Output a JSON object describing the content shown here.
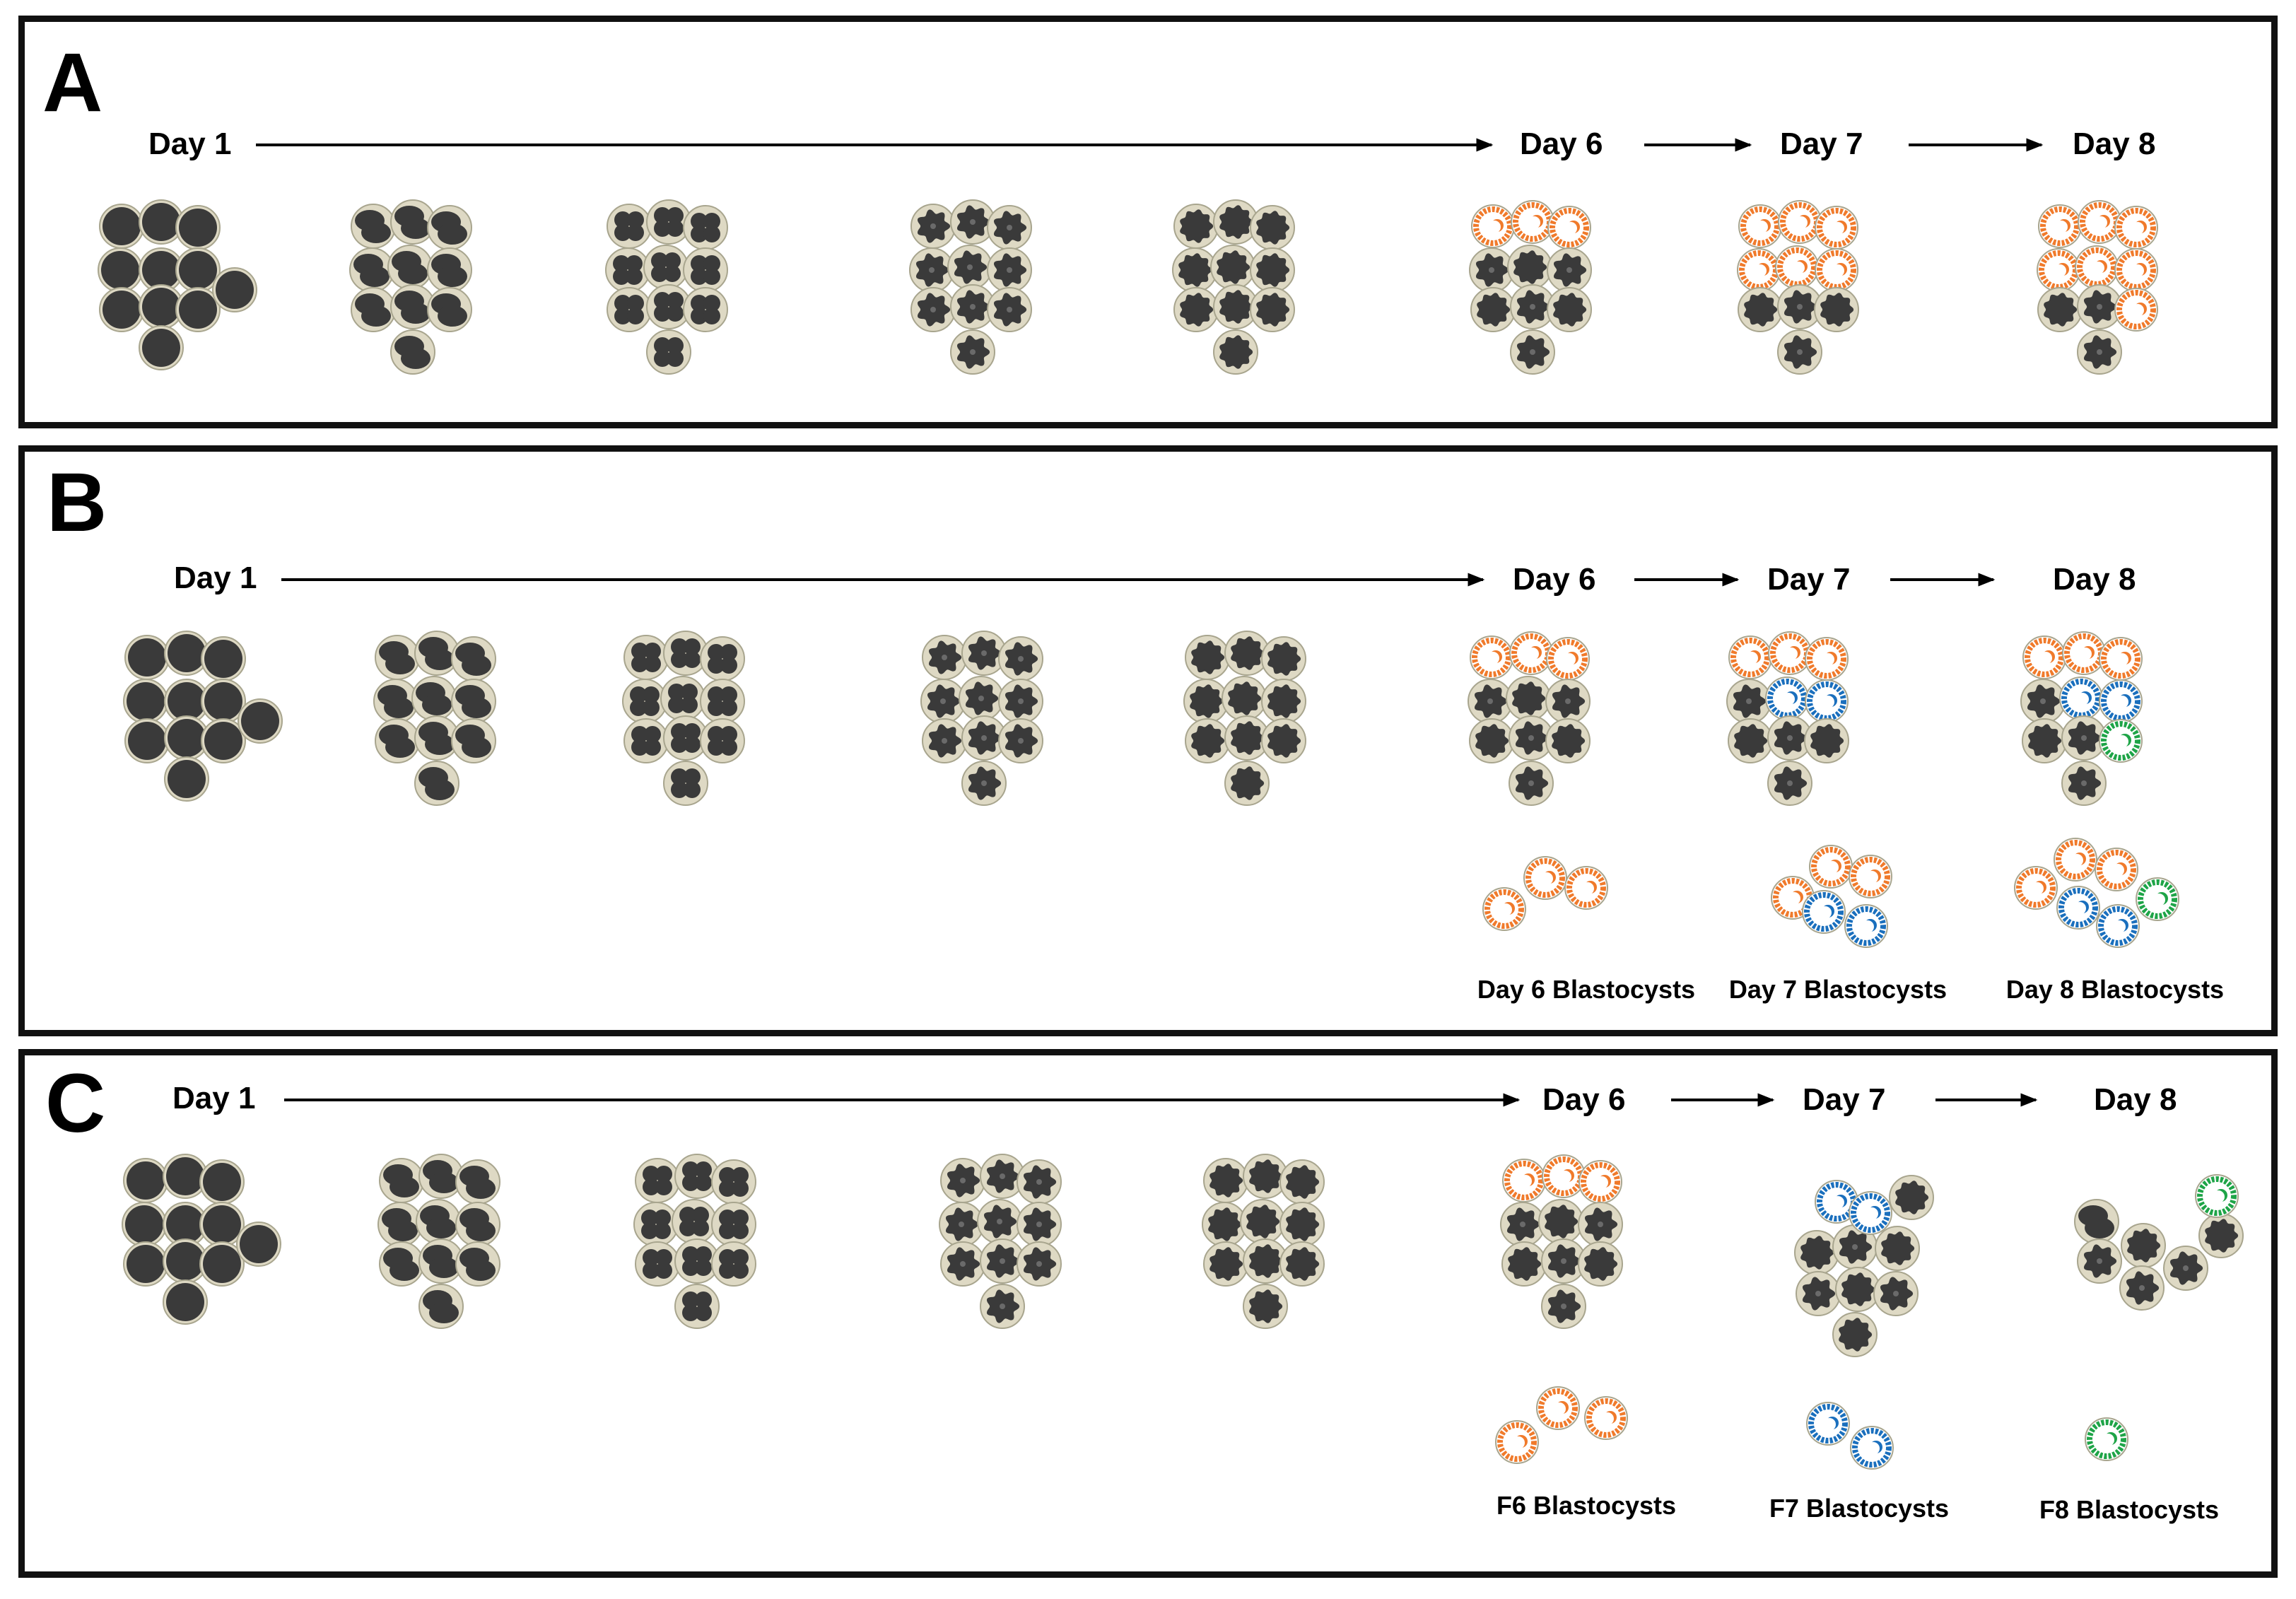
{
  "colors": {
    "cell": "#3a3a3a",
    "zona": "#ded9c4",
    "zona_stroke": "#a8a58e",
    "day6": "#f07a2b",
    "day7": "#1a6fbd",
    "day8": "#1ea447",
    "arrow": "#000000"
  },
  "panels": [
    {
      "letter": "A",
      "timeline": [
        "Day 1",
        "Day 6",
        "Day 7",
        "Day 8"
      ],
      "captions": []
    },
    {
      "letter": "B",
      "timeline": [
        "Day 1",
        "Day 6",
        "Day 7",
        "Day 8"
      ],
      "captions": [
        "Day 6 Blastocysts",
        "Day 7 Blastocysts",
        "Day 8 Blastocysts"
      ]
    },
    {
      "letter": "C",
      "timeline": [
        "Day 1",
        "Day 6",
        "Day 7",
        "Day 8"
      ],
      "captions": [
        "F6 Blastocysts",
        "F7 Blastocysts",
        "F8 Blastocysts"
      ]
    }
  ],
  "icons": {
    "embryo": "embryo-icon",
    "blastocyst": "blastocyst-icon"
  }
}
